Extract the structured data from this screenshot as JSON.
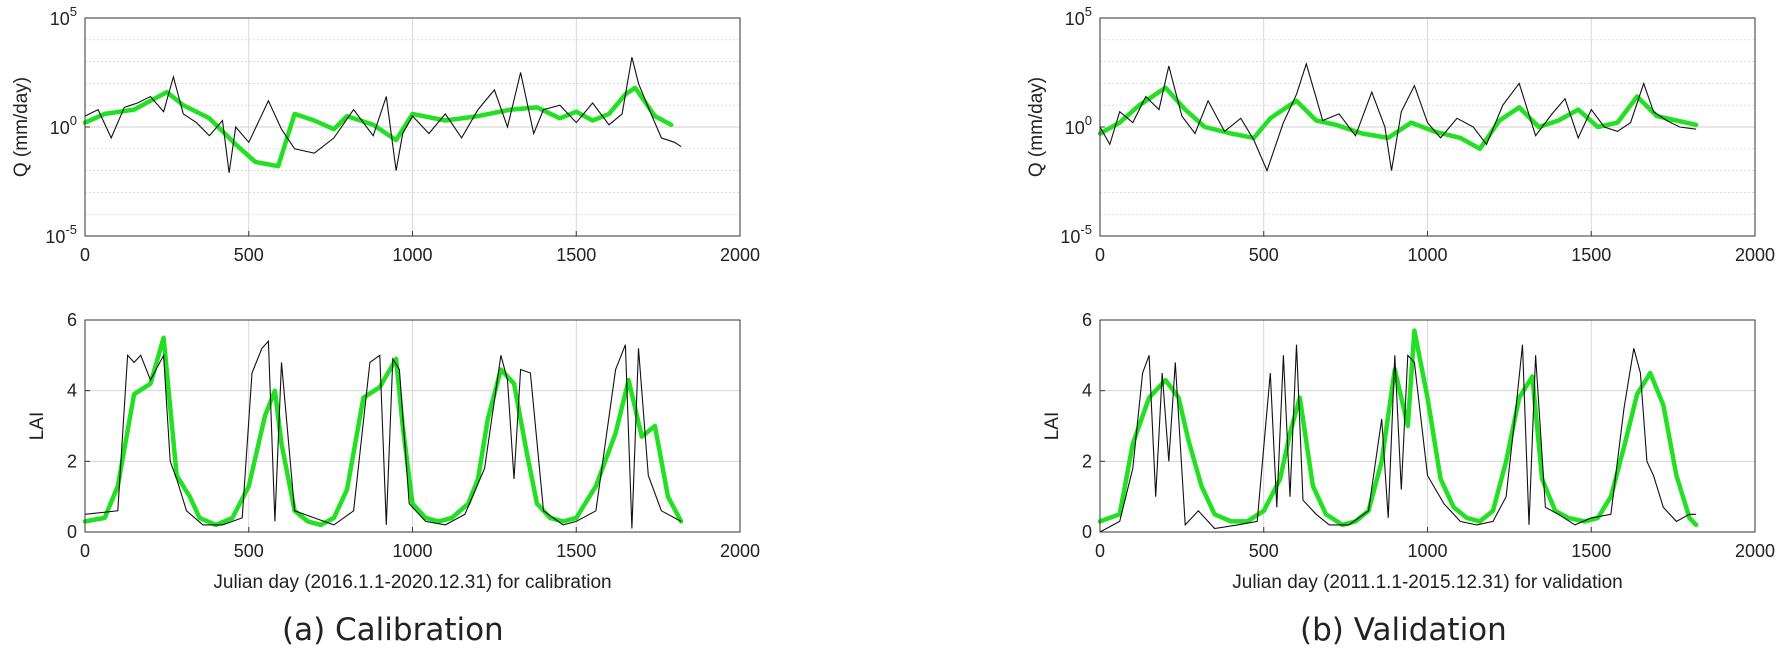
{
  "colors": {
    "observed": "#111111",
    "simulated": "#22e022",
    "grid": "#cfcfcf",
    "axis": "#333333"
  },
  "captions": {
    "a": "(a) Calibration",
    "b": "(b) Validation"
  },
  "chart_data": [
    {
      "id": "calib-q",
      "type": "line",
      "title": "",
      "xlabel": "",
      "ylabel": "Q (mm/day)",
      "yscale": "log",
      "xlim": [
        0,
        2000
      ],
      "ylim": [
        -5,
        5
      ],
      "xticks": [
        "0",
        "500",
        "1000",
        "1500",
        "2000"
      ],
      "yticks": [
        {
          "base": "10",
          "exp": "5"
        },
        {
          "base": "10",
          "exp": "0"
        },
        {
          "base": "10",
          "exp": "-5"
        }
      ],
      "grid": true,
      "series": [
        {
          "role": "simulated",
          "x": [
            0,
            60,
            150,
            200,
            250,
            300,
            380,
            460,
            520,
            590,
            640,
            700,
            760,
            800,
            880,
            950,
            1000,
            1100,
            1200,
            1300,
            1380,
            1450,
            1500,
            1550,
            1600,
            1650,
            1680,
            1740,
            1790
          ],
          "y": [
            0.2,
            0.6,
            0.8,
            1.2,
            1.6,
            1.0,
            0.4,
            -0.8,
            -1.6,
            -1.8,
            0.6,
            0.3,
            -0.1,
            0.5,
            0.1,
            -0.6,
            0.6,
            0.3,
            0.5,
            0.8,
            0.9,
            0.4,
            0.7,
            0.3,
            0.6,
            1.5,
            1.8,
            0.5,
            0.1
          ]
        },
        {
          "role": "observed",
          "x": [
            0,
            40,
            80,
            120,
            160,
            200,
            240,
            270,
            300,
            340,
            380,
            420,
            440,
            460,
            500,
            560,
            600,
            640,
            700,
            760,
            820,
            880,
            920,
            950,
            970,
            1000,
            1050,
            1100,
            1150,
            1200,
            1250,
            1290,
            1330,
            1370,
            1400,
            1450,
            1500,
            1550,
            1600,
            1640,
            1670,
            1690,
            1720,
            1760,
            1800,
            1820
          ],
          "y": [
            0.5,
            0.8,
            -0.5,
            0.9,
            1.1,
            1.4,
            0.7,
            2.3,
            0.6,
            0.2,
            -0.4,
            0.3,
            -2.1,
            0.0,
            -0.7,
            1.2,
            -0.1,
            -1.0,
            -1.2,
            -0.5,
            0.8,
            -0.4,
            1.4,
            -2.0,
            -0.3,
            0.5,
            -0.3,
            0.6,
            -0.5,
            0.8,
            1.7,
            0.0,
            2.5,
            -0.3,
            0.8,
            1.0,
            0.2,
            1.1,
            0.1,
            0.6,
            3.2,
            2.0,
            0.9,
            -0.5,
            -0.7,
            -0.9
          ]
        }
      ]
    },
    {
      "id": "calib-lai",
      "type": "line",
      "title": "",
      "xlabel": "Julian day (2016.1.1-2020.12.31) for calibration",
      "ylabel": "LAI",
      "xlim": [
        0,
        2000
      ],
      "ylim": [
        0,
        6
      ],
      "xticks": [
        "0",
        "500",
        "1000",
        "1500",
        "2000"
      ],
      "yticks": [
        "0",
        "2",
        "4",
        "6"
      ],
      "grid": true,
      "series": [
        {
          "role": "simulated",
          "x": [
            0,
            60,
            100,
            150,
            200,
            240,
            280,
            320,
            350,
            400,
            450,
            500,
            550,
            580,
            600,
            640,
            680,
            720,
            760,
            800,
            850,
            900,
            950,
            970,
            1000,
            1040,
            1080,
            1120,
            1170,
            1200,
            1230,
            1270,
            1310,
            1350,
            1380,
            1420,
            1460,
            1500,
            1560,
            1620,
            1660,
            1700,
            1740,
            1780,
            1820
          ],
          "y": [
            0.3,
            0.4,
            1.3,
            3.9,
            4.2,
            5.5,
            1.6,
            1.0,
            0.4,
            0.2,
            0.4,
            1.3,
            3.3,
            4.0,
            2.5,
            0.6,
            0.3,
            0.2,
            0.4,
            1.2,
            3.8,
            4.1,
            4.9,
            3.0,
            0.8,
            0.4,
            0.3,
            0.4,
            0.8,
            1.5,
            3.2,
            4.6,
            4.2,
            2.2,
            0.8,
            0.4,
            0.3,
            0.4,
            1.3,
            2.8,
            4.3,
            2.7,
            3.0,
            1.0,
            0.3
          ]
        },
        {
          "role": "observed",
          "x": [
            0,
            100,
            130,
            150,
            170,
            200,
            240,
            260,
            280,
            310,
            360,
            420,
            480,
            510,
            540,
            560,
            580,
            600,
            640,
            700,
            760,
            820,
            870,
            900,
            920,
            940,
            960,
            990,
            1040,
            1100,
            1160,
            1220,
            1270,
            1290,
            1310,
            1330,
            1360,
            1400,
            1460,
            1500,
            1560,
            1620,
            1650,
            1670,
            1690,
            1720,
            1760,
            1800,
            1820
          ],
          "y": [
            0.5,
            0.6,
            5.0,
            4.8,
            5.0,
            4.3,
            5.0,
            2.0,
            1.5,
            0.6,
            0.2,
            0.2,
            0.4,
            4.5,
            5.2,
            5.4,
            0.3,
            4.8,
            0.6,
            0.4,
            0.2,
            0.6,
            4.8,
            5.0,
            0.2,
            4.9,
            4.6,
            0.8,
            0.3,
            0.2,
            0.5,
            1.8,
            5.0,
            4.3,
            1.5,
            4.6,
            4.5,
            0.6,
            0.2,
            0.3,
            0.6,
            4.6,
            5.3,
            0.1,
            5.2,
            1.6,
            0.6,
            0.4,
            0.3
          ]
        }
      ]
    },
    {
      "id": "valid-q",
      "type": "line",
      "title": "",
      "xlabel": "",
      "ylabel": "Q (mm/day)",
      "yscale": "log",
      "xlim": [
        0,
        2000
      ],
      "ylim": [
        -5,
        5
      ],
      "xticks": [
        "0",
        "500",
        "1000",
        "1500",
        "2000"
      ],
      "yticks": [
        {
          "base": "10",
          "exp": "5"
        },
        {
          "base": "10",
          "exp": "0"
        },
        {
          "base": "10",
          "exp": "-5"
        }
      ],
      "grid": true,
      "series": [
        {
          "role": "simulated",
          "x": [
            0,
            60,
            120,
            200,
            260,
            320,
            400,
            470,
            520,
            600,
            660,
            720,
            800,
            880,
            950,
            1020,
            1100,
            1160,
            1220,
            1280,
            1340,
            1400,
            1460,
            1520,
            1580,
            1640,
            1700,
            1760,
            1820
          ],
          "y": [
            -0.3,
            0.2,
            1.0,
            1.8,
            0.8,
            0.0,
            -0.3,
            -0.5,
            0.4,
            1.2,
            0.3,
            0.1,
            -0.3,
            -0.5,
            0.2,
            -0.2,
            -0.5,
            -1.0,
            0.3,
            0.9,
            0.0,
            0.3,
            0.8,
            0.0,
            0.2,
            1.4,
            0.5,
            0.3,
            0.1
          ]
        },
        {
          "role": "observed",
          "x": [
            0,
            30,
            60,
            100,
            140,
            180,
            210,
            250,
            290,
            330,
            380,
            430,
            470,
            510,
            560,
            600,
            630,
            680,
            730,
            780,
            830,
            870,
            890,
            920,
            960,
            1000,
            1040,
            1090,
            1140,
            1180,
            1230,
            1280,
            1330,
            1380,
            1420,
            1460,
            1500,
            1540,
            1580,
            1620,
            1660,
            1690,
            1730,
            1770,
            1820
          ],
          "y": [
            0.0,
            -0.8,
            0.7,
            0.2,
            1.4,
            0.8,
            2.8,
            0.5,
            -0.3,
            1.2,
            -0.2,
            0.4,
            -0.6,
            -2.0,
            0.2,
            1.5,
            2.9,
            0.3,
            0.6,
            -0.4,
            1.6,
            0.0,
            -2.0,
            0.7,
            1.9,
            0.2,
            -0.5,
            0.4,
            0.0,
            -0.8,
            1.0,
            2.0,
            -0.4,
            0.6,
            1.3,
            -0.5,
            0.8,
            0.0,
            -0.2,
            0.2,
            2.0,
            0.7,
            0.3,
            0.0,
            -0.1
          ]
        }
      ]
    },
    {
      "id": "valid-lai",
      "type": "line",
      "title": "",
      "xlabel": "Julian day (2011.1.1-2015.12.31) for validation",
      "ylabel": "LAI",
      "xlim": [
        0,
        2000
      ],
      "ylim": [
        0,
        6
      ],
      "xticks": [
        "0",
        "500",
        "1000",
        "1500",
        "2000"
      ],
      "yticks": [
        "0",
        "2",
        "4",
        "6"
      ],
      "grid": true,
      "series": [
        {
          "role": "simulated",
          "x": [
            0,
            60,
            100,
            150,
            200,
            240,
            270,
            310,
            350,
            400,
            450,
            500,
            550,
            580,
            610,
            650,
            690,
            740,
            780,
            820,
            860,
            900,
            940,
            960,
            1000,
            1040,
            1080,
            1120,
            1160,
            1200,
            1240,
            1280,
            1320,
            1350,
            1390,
            1430,
            1480,
            1520,
            1560,
            1600,
            1640,
            1680,
            1720,
            1760,
            1800,
            1820
          ],
          "y": [
            0.3,
            0.5,
            2.5,
            3.8,
            4.3,
            3.8,
            2.6,
            1.3,
            0.5,
            0.3,
            0.3,
            0.6,
            1.5,
            2.8,
            3.8,
            1.3,
            0.5,
            0.2,
            0.3,
            0.6,
            2.0,
            4.6,
            3.0,
            5.7,
            3.8,
            1.5,
            0.7,
            0.4,
            0.3,
            0.6,
            2.0,
            3.8,
            4.4,
            1.5,
            0.6,
            0.4,
            0.3,
            0.4,
            1.0,
            2.4,
            3.9,
            4.5,
            3.6,
            1.6,
            0.4,
            0.2
          ]
        },
        {
          "role": "observed",
          "x": [
            0,
            60,
            100,
            130,
            150,
            170,
            190,
            210,
            230,
            260,
            300,
            350,
            420,
            480,
            520,
            540,
            560,
            580,
            600,
            620,
            660,
            700,
            760,
            820,
            860,
            880,
            900,
            920,
            940,
            960,
            1000,
            1050,
            1100,
            1150,
            1200,
            1240,
            1270,
            1290,
            1310,
            1330,
            1360,
            1400,
            1450,
            1500,
            1560,
            1600,
            1630,
            1650,
            1670,
            1690,
            1720,
            1760,
            1800,
            1820
          ],
          "y": [
            0.0,
            0.3,
            1.8,
            4.5,
            5.0,
            1.0,
            4.5,
            2.0,
            4.8,
            0.2,
            0.6,
            0.1,
            0.2,
            0.3,
            4.5,
            0.7,
            5.0,
            1.0,
            5.3,
            0.9,
            0.5,
            0.2,
            0.2,
            0.6,
            3.2,
            0.4,
            5.0,
            1.2,
            5.0,
            4.8,
            1.6,
            0.8,
            0.3,
            0.2,
            0.3,
            1.0,
            3.5,
            5.3,
            0.2,
            5.0,
            0.7,
            0.5,
            0.2,
            0.4,
            0.5,
            3.5,
            5.2,
            4.5,
            2.0,
            1.6,
            0.7,
            0.3,
            0.5,
            0.5
          ]
        }
      ]
    }
  ]
}
